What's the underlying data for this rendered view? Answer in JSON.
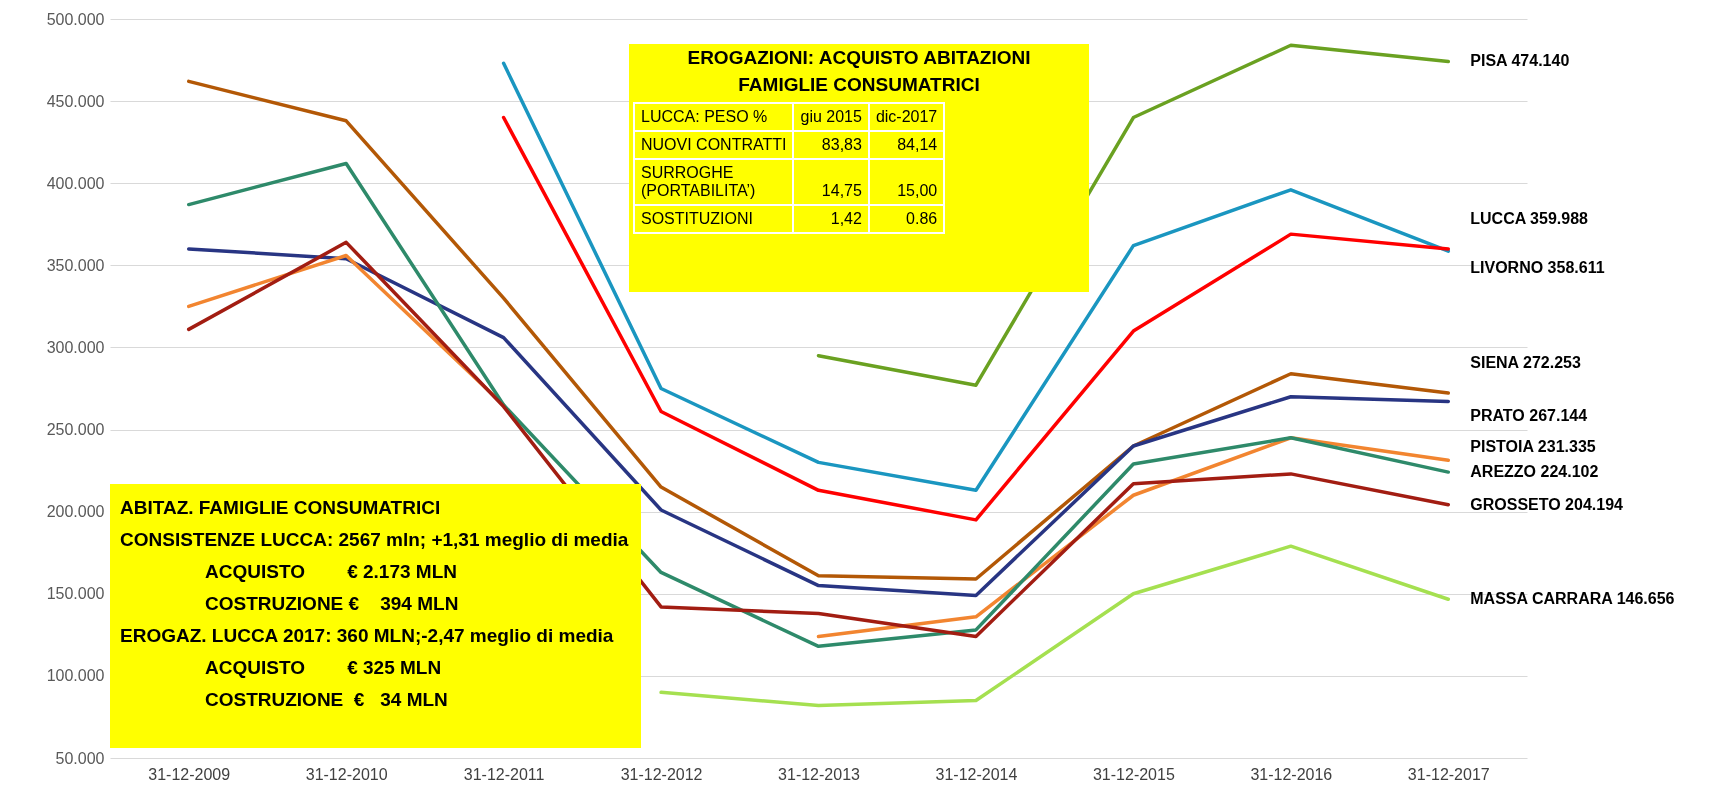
{
  "chart_data": {
    "type": "line",
    "categories": [
      "31-12-2009",
      "31-12-2010",
      "31-12-2011",
      "31-12-2012",
      "31-12-2013",
      "31-12-2014",
      "31-12-2015",
      "31-12-2016",
      "31-12-2017"
    ],
    "series": [
      {
        "color": "#6aa121",
        "values": [
          null,
          null,
          null,
          null,
          295000,
          277000,
          440000,
          484000,
          474140
        ]
      },
      {
        "color": "#1a96c0",
        "values": [
          null,
          null,
          473000,
          275000,
          230000,
          213000,
          362000,
          396000,
          358611
        ]
      },
      {
        "color": "#ff0000",
        "values": [
          null,
          null,
          440000,
          261000,
          213000,
          195000,
          310000,
          369000,
          359988
        ]
      },
      {
        "color": "#b35806",
        "values": [
          462000,
          438000,
          330000,
          215000,
          161000,
          159000,
          240000,
          284000,
          272253
        ]
      },
      {
        "color": "#283583",
        "values": [
          360000,
          354000,
          306000,
          201000,
          155000,
          149000,
          240000,
          270000,
          267144
        ]
      },
      {
        "color": "#f28530",
        "values": [
          325000,
          356000,
          265000,
          null,
          124000,
          136000,
          210000,
          245000,
          231335
        ]
      },
      {
        "color": "#2e8a6a",
        "values": [
          387000,
          412000,
          265000,
          163000,
          118000,
          128000,
          229000,
          245000,
          224102
        ]
      },
      {
        "color": "#a21d12",
        "values": [
          311000,
          364000,
          264000,
          142000,
          138000,
          124000,
          217000,
          223000,
          204194
        ]
      },
      {
        "color": "#a5e050",
        "values": [
          null,
          null,
          null,
          90000,
          82000,
          85000,
          150000,
          179000,
          146656
        ]
      }
    ],
    "ylim": [
      50000,
      500000
    ],
    "yticks": [
      {
        "value": 50000,
        "label": "50.000"
      },
      {
        "value": 100000,
        "label": "100.000"
      },
      {
        "value": 150000,
        "label": "150.000"
      },
      {
        "value": 200000,
        "label": "200.000"
      },
      {
        "value": 250000,
        "label": "250.000"
      },
      {
        "value": 300000,
        "label": "300.000"
      },
      {
        "value": 350000,
        "label": "350.000"
      },
      {
        "value": 400000,
        "label": "400.000"
      },
      {
        "value": 450000,
        "label": "450.000"
      },
      {
        "value": 500000,
        "label": "500.000"
      }
    ],
    "grid": "y",
    "annotations": [
      {
        "text": "PISA 474.140",
        "x": "31-12-2017",
        "y": 474140
      },
      {
        "text": "LUCCA 359.988",
        "x": "31-12-2017",
        "y": 359988
      },
      {
        "text": "LIVORNO 358.611",
        "x": "31-12-2017",
        "y": 358611
      },
      {
        "text": "SIENA 272.253",
        "x": "31-12-2017",
        "y": 272253
      },
      {
        "text": "PRATO 267.144",
        "x": "31-12-2017",
        "y": 267144
      },
      {
        "text": "PISTOIA 231.335",
        "x": "31-12-2017",
        "y": 231335
      },
      {
        "text": "AREZZO 224.102",
        "x": "31-12-2017",
        "y": 224102
      },
      {
        "text": "GROSSETO 204.194",
        "x": "31-12-2017",
        "y": 204194
      },
      {
        "text": "MASSA CARRARA 146.656",
        "x": "31-12-2017",
        "y": 146656
      },
      "EROGAZIONI: ACQUISTO ABITAZIONI",
      "FAMIGLIE CONSUMATRICI",
      "LUCCA: PESO %",
      "giu 2015",
      "dic-2017",
      "NUOVI CONTRATTI",
      "83,83",
      "84,14",
      "SURROGHE",
      "(PORTABILITA’)",
      "14,75",
      "15,00",
      "SOSTITUZIONI",
      "1,42",
      "0.86",
      "ABITAZ. FAMIGLIE CONSUMATRICI",
      "CONSISTENZE LUCCA: 2567 mln; +1,31 meglio di media",
      "ACQUISTO        € 2.173 MLN",
      "COSTRUZIONE €    394 MLN",
      "EROGAZ. LUCCA 2017: 360 MLN;-2,47 meglio di media",
      "ACQUISTO        € 325 MLN",
      "COSTRUZIONE  €   34 MLN"
    ]
  }
}
